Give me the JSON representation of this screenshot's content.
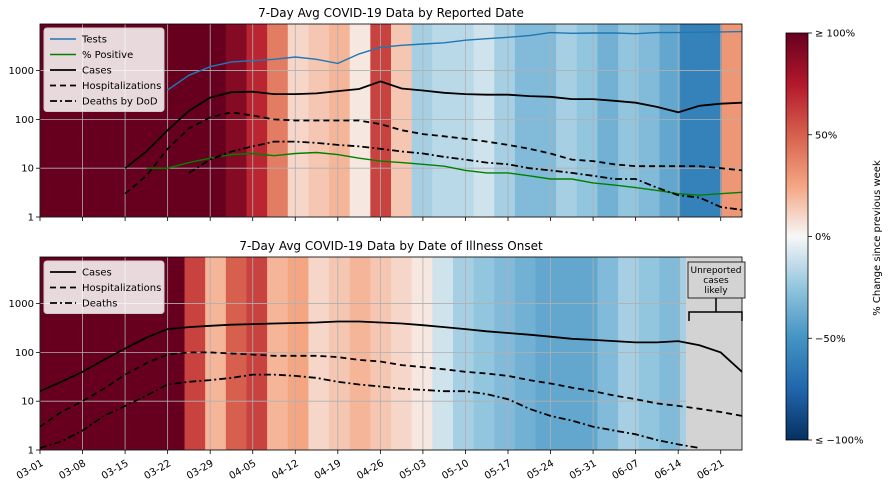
{
  "chart_data": [
    {
      "type": "line",
      "title": "7-Day Avg COVID-19 Data by Reported Date",
      "y_scale": "log",
      "ylim": [
        1,
        9000
      ],
      "y_ticks": [
        "1",
        "10",
        "100",
        "1000"
      ],
      "x": [
        "03-01",
        "03-04",
        "03-08",
        "03-11",
        "03-15",
        "03-18",
        "03-22",
        "03-25",
        "03-29",
        "04-01",
        "04-05",
        "04-08",
        "04-12",
        "04-15",
        "04-19",
        "04-22",
        "04-26",
        "04-29",
        "05-03",
        "05-06",
        "05-10",
        "05-13",
        "05-17",
        "05-20",
        "05-24",
        "05-27",
        "05-31",
        "06-03",
        "06-07",
        "06-10",
        "06-14",
        "06-17",
        "06-21",
        "06-23"
      ],
      "legend": {
        "position": "top-left",
        "entries": [
          "Tests",
          "% Positive",
          "Cases",
          "Hospitalizations",
          "Deaths by DoD"
        ]
      },
      "grid": true,
      "series": [
        {
          "name": "Tests",
          "color": "#1f77b4",
          "style": "solid",
          "values": [
            null,
            null,
            null,
            null,
            null,
            null,
            400,
            800,
            1200,
            1500,
            1600,
            1700,
            1900,
            1700,
            1400,
            2200,
            3000,
            3300,
            3500,
            3700,
            4200,
            4500,
            4800,
            5200,
            6000,
            5800,
            5900,
            5900,
            5700,
            6000,
            6000,
            6100,
            6200,
            6300
          ]
        },
        {
          "name": "% Positive",
          "color": "#008000",
          "style": "solid",
          "values": [
            null,
            null,
            null,
            null,
            null,
            10,
            10,
            13,
            16,
            19,
            20,
            18,
            20,
            21,
            19,
            16,
            14,
            13,
            12,
            11,
            9,
            8,
            8,
            7,
            6,
            6,
            5,
            4.5,
            4,
            3.5,
            3,
            2.8,
            3,
            3.2
          ]
        },
        {
          "name": "Cases",
          "color": "#000000",
          "style": "solid",
          "values": [
            null,
            null,
            null,
            null,
            10,
            22,
            60,
            150,
            280,
            360,
            370,
            330,
            330,
            340,
            380,
            420,
            600,
            430,
            390,
            350,
            330,
            320,
            320,
            300,
            290,
            260,
            260,
            240,
            220,
            180,
            140,
            190,
            210,
            220
          ]
        },
        {
          "name": "Hospitalizations",
          "color": "#000000",
          "style": "dashed",
          "values": [
            null,
            null,
            null,
            null,
            3,
            7,
            25,
            65,
            110,
            140,
            120,
            100,
            95,
            95,
            95,
            95,
            80,
            60,
            50,
            45,
            40,
            35,
            30,
            25,
            20,
            15,
            14,
            12,
            11,
            11,
            11,
            11,
            10,
            9
          ]
        },
        {
          "name": "Deaths by DoD",
          "color": "#000000",
          "style": "dashdot",
          "values": [
            null,
            null,
            null,
            null,
            null,
            null,
            null,
            8,
            15,
            22,
            28,
            35,
            35,
            33,
            30,
            28,
            25,
            22,
            20,
            17,
            15,
            13,
            12,
            10,
            9,
            8,
            7,
            6,
            6,
            4,
            2.8,
            2.5,
            1.6,
            1.4
          ]
        }
      ],
      "pct_change_background": [
        100,
        100,
        100,
        100,
        100,
        100,
        100,
        100,
        100,
        90,
        70,
        40,
        10,
        15,
        20,
        5,
        60,
        15,
        -20,
        -15,
        -15,
        -10,
        -20,
        -30,
        -30,
        -20,
        -25,
        -35,
        -25,
        -30,
        -40,
        -60,
        -60,
        30
      ]
    },
    {
      "type": "line",
      "title": "7-Day Avg COVID-19 Data by Date of Illness Onset",
      "y_scale": "log",
      "ylim": [
        1,
        9000
      ],
      "y_ticks": [
        "1",
        "10",
        "100",
        "1000"
      ],
      "x": [
        "03-01",
        "03-04",
        "03-08",
        "03-11",
        "03-15",
        "03-18",
        "03-22",
        "03-25",
        "03-29",
        "04-01",
        "04-05",
        "04-08",
        "04-12",
        "04-15",
        "04-19",
        "04-22",
        "04-26",
        "04-29",
        "05-03",
        "05-06",
        "05-10",
        "05-13",
        "05-17",
        "05-20",
        "05-24",
        "05-27",
        "05-31",
        "06-03",
        "06-07",
        "06-10",
        "06-14",
        "06-17",
        "06-21",
        "06-23"
      ],
      "legend": {
        "position": "top-left",
        "entries": [
          "Cases",
          "Hospitalizations",
          "Deaths"
        ]
      },
      "grid": true,
      "series": [
        {
          "name": "Cases",
          "color": "#000000",
          "style": "solid",
          "values": [
            16,
            25,
            40,
            70,
            120,
            200,
            300,
            330,
            350,
            370,
            380,
            390,
            400,
            410,
            430,
            430,
            410,
            390,
            360,
            330,
            300,
            270,
            250,
            230,
            210,
            190,
            180,
            170,
            160,
            160,
            170,
            140,
            100,
            40
          ]
        },
        {
          "name": "Hospitalizations",
          "color": "#000000",
          "style": "dashed",
          "values": [
            3,
            6,
            10,
            18,
            35,
            60,
            90,
            100,
            100,
            95,
            90,
            85,
            85,
            85,
            80,
            70,
            65,
            55,
            50,
            45,
            40,
            37,
            33,
            27,
            23,
            19,
            16,
            13,
            11,
            9,
            8,
            7,
            6,
            5
          ]
        },
        {
          "name": "Deaths",
          "color": "#000000",
          "style": "dashdot",
          "values": [
            1.1,
            1.5,
            2.5,
            5,
            8,
            13,
            22,
            25,
            27,
            30,
            35,
            35,
            33,
            30,
            25,
            22,
            20,
            18,
            17,
            16,
            16,
            14,
            11,
            7,
            5,
            4,
            3,
            2.5,
            2.1,
            1.6,
            1.3,
            1.1,
            null,
            null
          ]
        }
      ],
      "pct_change_background": [
        100,
        100,
        100,
        100,
        100,
        100,
        100,
        60,
        20,
        50,
        60,
        20,
        25,
        10,
        15,
        20,
        15,
        10,
        5,
        -10,
        -20,
        -25,
        -30,
        -35,
        -40,
        -40,
        -40,
        -30,
        -20,
        -25,
        -30,
        -20,
        -20,
        -10
      ],
      "annotation": {
        "text_lines": [
          "Unreported",
          "cases",
          "likely"
        ],
        "region_start": "06-14"
      }
    }
  ],
  "x_tick_labels": [
    "03-01",
    "03-08",
    "03-15",
    "03-22",
    "03-29",
    "04-05",
    "04-12",
    "04-19",
    "04-26",
    "05-03",
    "05-10",
    "05-17",
    "05-24",
    "05-31",
    "06-07",
    "06-14",
    "06-21"
  ],
  "colorbar": {
    "label": "% Change since previous week",
    "ticks": [
      "≥ 100%",
      "50%",
      "0%",
      "−50%",
      "≤ −100%"
    ],
    "colormap": "RdBu_r"
  }
}
